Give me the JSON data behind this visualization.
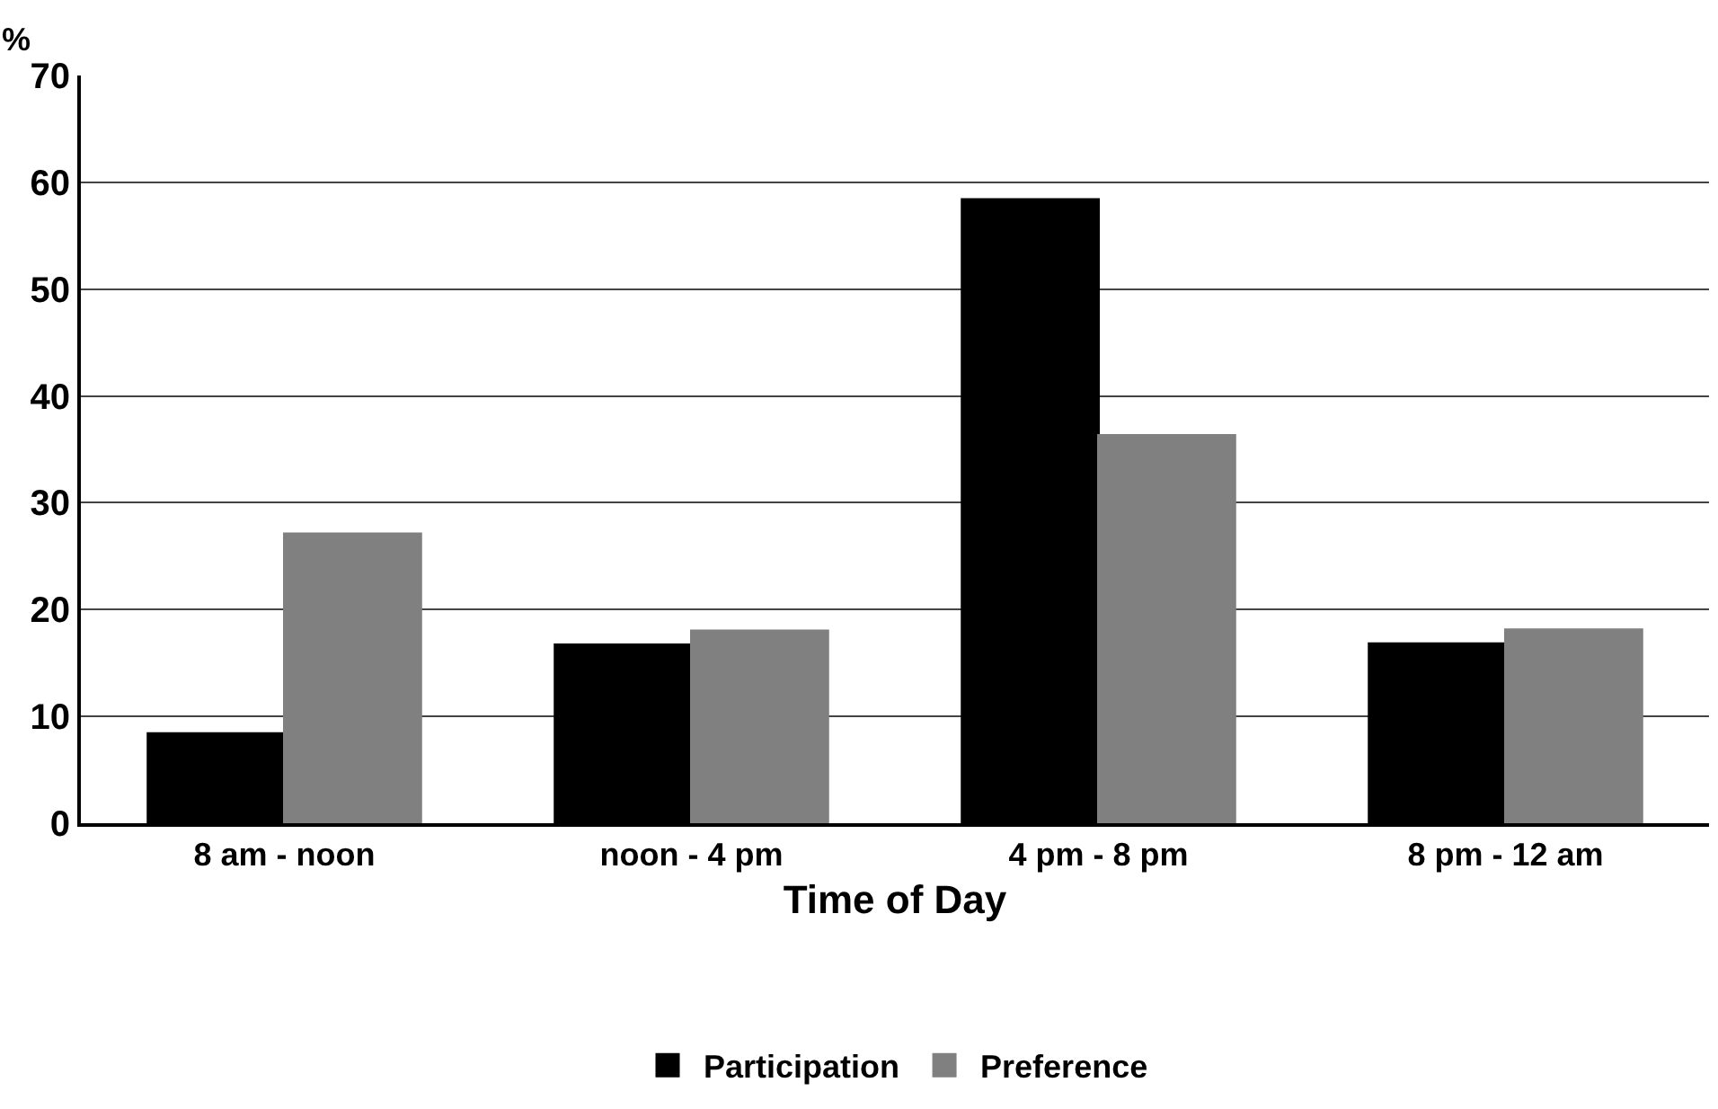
{
  "chart_data": {
    "type": "bar",
    "ylabel": "%",
    "xlabel": "Time of Day",
    "categories": [
      "8 am - noon",
      "noon - 4 pm",
      "4 pm - 8 pm",
      "8 pm - 12 am"
    ],
    "series": [
      {
        "name": "Participation",
        "color": "#000000",
        "values": [
          8.4,
          16.7,
          58.4,
          16.8
        ]
      },
      {
        "name": "Preference",
        "color": "#808080",
        "values": [
          27.1,
          18.0,
          36.3,
          18.1
        ]
      }
    ],
    "ylim": [
      0,
      70
    ],
    "yticks": [
      0,
      10,
      20,
      30,
      40,
      50,
      60,
      70
    ],
    "grid": "y",
    "legend": "bottom"
  }
}
